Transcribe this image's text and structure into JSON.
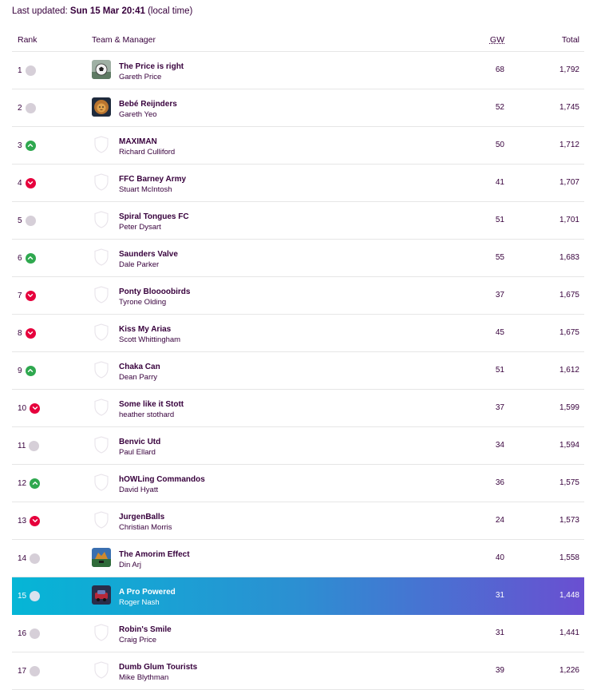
{
  "last_updated": {
    "prefix": "Last updated:",
    "date": "Sun 15 Mar 20:41",
    "suffix": "(local time)"
  },
  "columns": {
    "rank": "Rank",
    "team": "Team & Manager",
    "gw": "GW",
    "total": "Total"
  },
  "colors": {
    "brand": "#37003c",
    "up": "#2fa84f",
    "down": "#e6003c",
    "same": "#d6cfd8",
    "highlight_start": "#05b6d6",
    "highlight_end": "#6a4fd1"
  },
  "rows": [
    {
      "rank": "1",
      "move": "same",
      "badge": "football-photo",
      "team": "The Price is right",
      "manager": "Gareth Price",
      "gw": "68",
      "total": "1,792"
    },
    {
      "rank": "2",
      "move": "same",
      "badge": "lion-photo",
      "team": "Bebé Reijnders",
      "manager": "Gareth Yeo",
      "gw": "52",
      "total": "1,745"
    },
    {
      "rank": "3",
      "move": "up",
      "badge": "shield",
      "team": "MAXIMAN",
      "manager": "Richard Culliford",
      "gw": "50",
      "total": "1,712"
    },
    {
      "rank": "4",
      "move": "down",
      "badge": "shield",
      "team": "FFC Barney Army",
      "manager": "Stuart McIntosh",
      "gw": "41",
      "total": "1,707"
    },
    {
      "rank": "5",
      "move": "same",
      "badge": "shield",
      "team": "Spiral Tongues FC",
      "manager": "Peter Dysart",
      "gw": "51",
      "total": "1,701"
    },
    {
      "rank": "6",
      "move": "up",
      "badge": "shield",
      "team": "Saunders Valve",
      "manager": "Dale Parker",
      "gw": "55",
      "total": "1,683"
    },
    {
      "rank": "7",
      "move": "down",
      "badge": "shield",
      "team": "Ponty Bloooobirds",
      "manager": "Tyrone Olding",
      "gw": "37",
      "total": "1,675"
    },
    {
      "rank": "8",
      "move": "down",
      "badge": "shield",
      "team": "Kiss My Arias",
      "manager": "Scott Whittingham",
      "gw": "45",
      "total": "1,675"
    },
    {
      "rank": "9",
      "move": "up",
      "badge": "shield",
      "team": "Chaka Can",
      "manager": "Dean Parry",
      "gw": "51",
      "total": "1,612"
    },
    {
      "rank": "10",
      "move": "down",
      "badge": "shield",
      "team": "Some like it Stott",
      "manager": "heather stothard",
      "gw": "37",
      "total": "1,599"
    },
    {
      "rank": "11",
      "move": "same",
      "badge": "shield",
      "team": "Benvic Utd",
      "manager": "Paul Ellard",
      "gw": "34",
      "total": "1,594"
    },
    {
      "rank": "12",
      "move": "up",
      "badge": "shield",
      "team": "hOWLing Commandos",
      "manager": "David Hyatt",
      "gw": "36",
      "total": "1,575"
    },
    {
      "rank": "13",
      "move": "down",
      "badge": "shield",
      "team": "JurgenBalls",
      "manager": "Christian Morris",
      "gw": "24",
      "total": "1,573"
    },
    {
      "rank": "14",
      "move": "same",
      "badge": "stadium-photo",
      "team": "The Amorim Effect",
      "manager": "Din Arj",
      "gw": "40",
      "total": "1,558"
    },
    {
      "rank": "15",
      "move": "same",
      "badge": "car-photo",
      "team": "A Pro Powered",
      "manager": "Roger Nash",
      "gw": "31",
      "total": "1,448",
      "highlight": true
    },
    {
      "rank": "16",
      "move": "same",
      "badge": "shield",
      "team": "Robin's Smile",
      "manager": "Craig Price",
      "gw": "31",
      "total": "1,441"
    },
    {
      "rank": "17",
      "move": "same",
      "badge": "shield",
      "team": "Dumb Glum Tourists",
      "manager": "Mike Blythman",
      "gw": "39",
      "total": "1,226"
    }
  ]
}
